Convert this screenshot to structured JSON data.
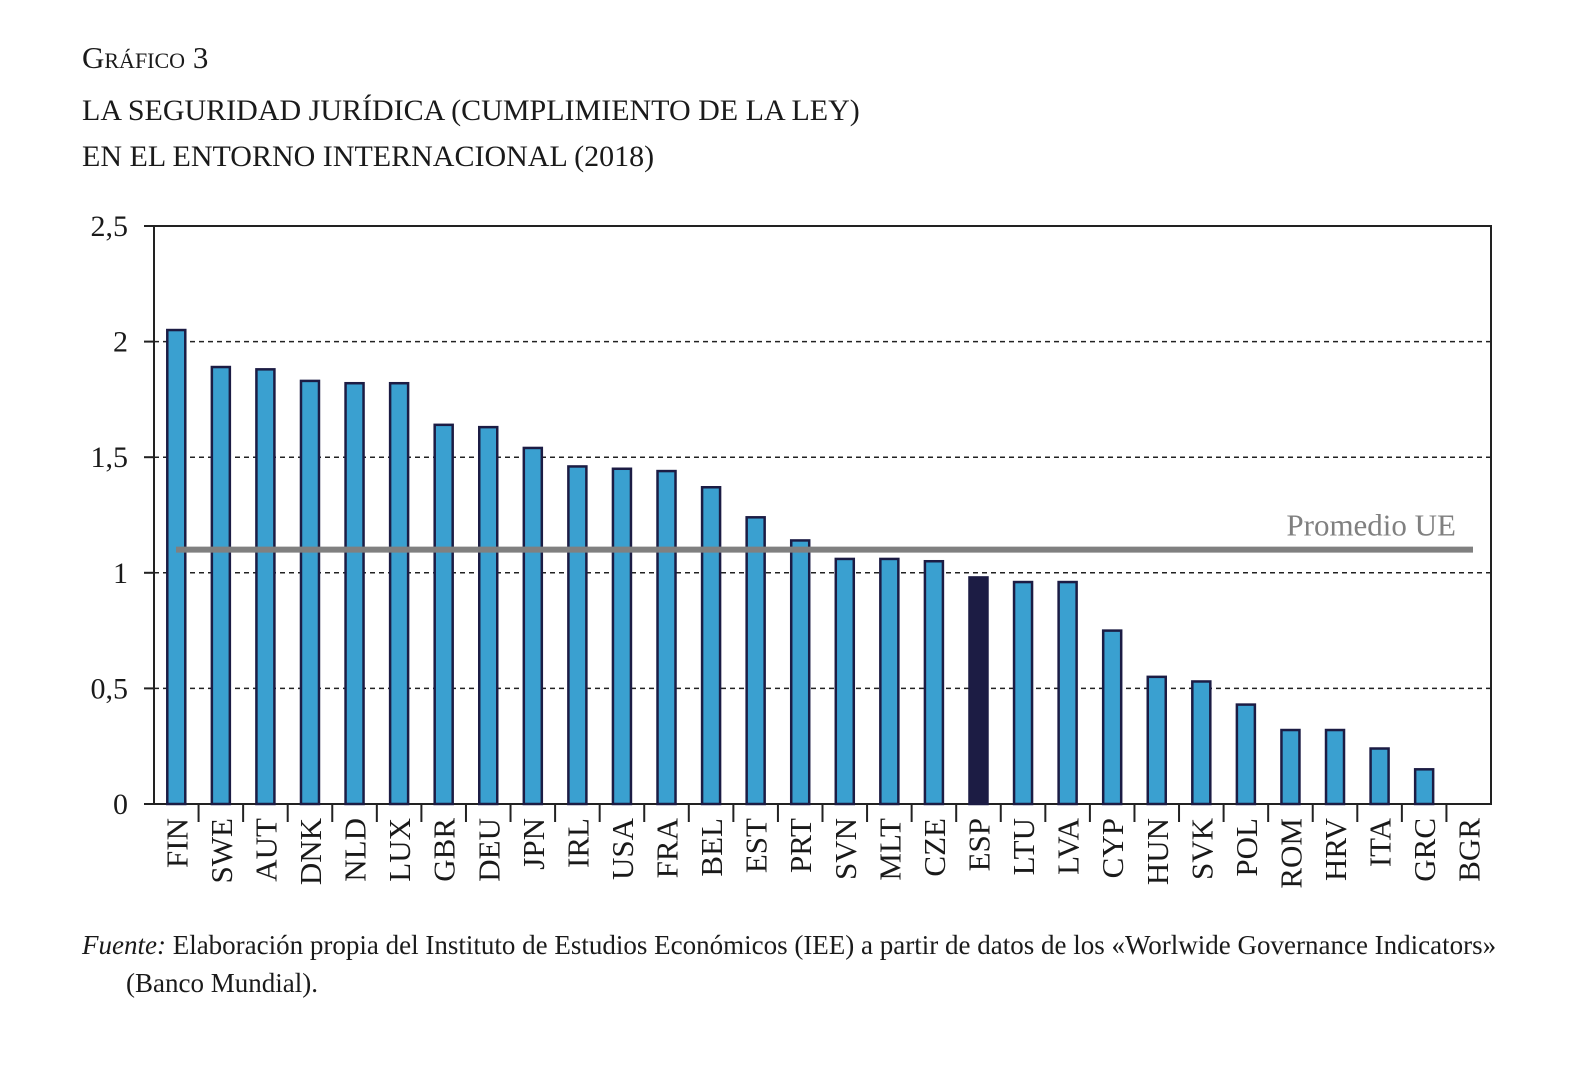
{
  "figure_label": "Gráfico 3",
  "title_lines": [
    "LA SEGURIDAD JURÍDICA (CUMPLIMIENTO DE LA LEY)",
    "EN EL ENTORNO INTERNACIONAL (2018)"
  ],
  "source": {
    "prefix": "Fuente:",
    "text": " Elaboración propia del Instituto de Estudios Económicos (IEE) a partir de datos de los «Worlwide Governance Indicators» (Banco Mundial)."
  },
  "chart_data": {
    "type": "bar",
    "title": "LA SEGURIDAD JURÍDICA (CUMPLIMIENTO DE LA LEY) EN EL ENTORNO INTERNACIONAL (2018)",
    "categories": [
      "FIN",
      "SWE",
      "AUT",
      "DNK",
      "NLD",
      "LUX",
      "GBR",
      "DEU",
      "JPN",
      "IRL",
      "USA",
      "FRA",
      "BEL",
      "EST",
      "PRT",
      "SVN",
      "MLT",
      "CZE",
      "ESP",
      "LTU",
      "LVA",
      "CYP",
      "HUN",
      "SVK",
      "POL",
      "ROM",
      "HRV",
      "ITA",
      "GRC",
      "BGR"
    ],
    "values": [
      2.05,
      1.89,
      1.88,
      1.83,
      1.82,
      1.82,
      1.64,
      1.63,
      1.54,
      1.46,
      1.45,
      1.44,
      1.37,
      1.24,
      1.14,
      1.06,
      1.06,
      1.05,
      0.98,
      0.96,
      0.96,
      0.75,
      0.55,
      0.53,
      0.43,
      0.32,
      0.32,
      0.24,
      0.15,
      0.0
    ],
    "highlight": "ESP",
    "reference_line": {
      "label": "Promedio UE",
      "value": 1.1,
      "color": "#808080"
    },
    "ylim": [
      0,
      2.5
    ],
    "yticks": [
      0,
      0.5,
      1,
      1.5,
      2,
      2.5
    ],
    "ytick_labels": [
      "0",
      "0,5",
      "1",
      "1,5",
      "2",
      "2,5"
    ],
    "grid": "horizontal dashed",
    "colors": {
      "bar": "#3aa0d0",
      "highlight": "#1c1c44",
      "outline": "#1c1c44"
    }
  }
}
